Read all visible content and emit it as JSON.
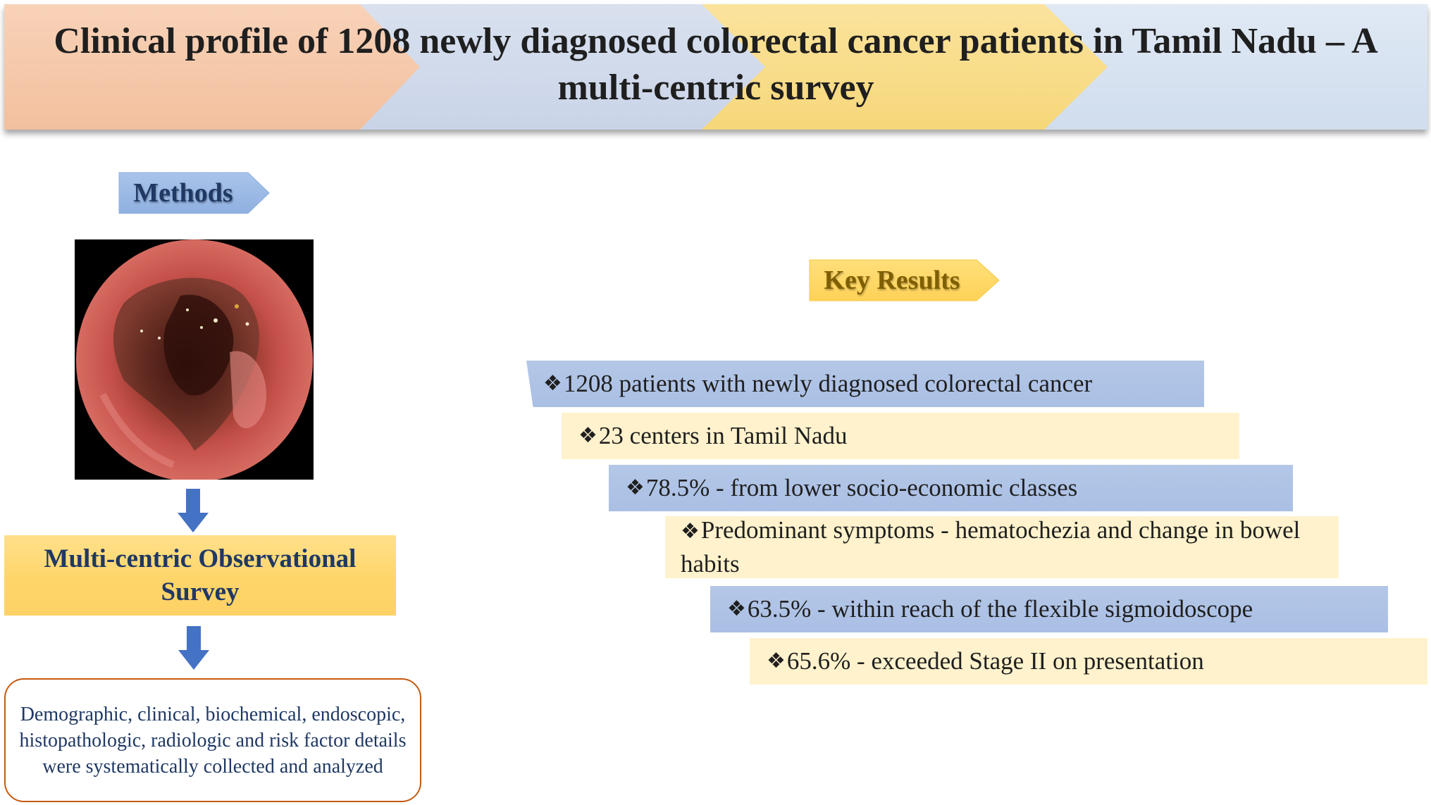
{
  "header": {
    "title": "Clinical profile of 1208 newly diagnosed colorectal cancer patients in Tamil Nadu – A multi-centric survey",
    "colors": [
      "#f4c7a8",
      "#cfd8ea",
      "#f9df8e",
      "#d6e2f0"
    ]
  },
  "methods": {
    "tag_label": "Methods",
    "image_icon": "colonoscopy-image",
    "survey_label": "Multi-centric Observational Survey",
    "details": "Demographic, clinical, biochemical, endoscopic, histopathologic, radiologic and risk factor details were systematically collected and analyzed"
  },
  "results": {
    "tag_label": "Key Results",
    "bullet": "❖",
    "items": [
      {
        "text": "1208 patients with newly diagnosed colorectal cancer",
        "color": "#b4c7e7"
      },
      {
        "text": "23 centers in Tamil Nadu",
        "color": "#fff2cc"
      },
      {
        "text": "78.5%  - from lower socio-economic classes",
        "color": "#b4c7e7"
      },
      {
        "text": "Predominant symptoms  - hematochezia and change in bowel habits",
        "color": "#fff2cc"
      },
      {
        "text": "63.5%  - within reach of the flexible sigmoidoscope",
        "color": "#b4c7e7"
      },
      {
        "text": "65.6%  - exceeded Stage II on presentation",
        "color": "#fff2cc"
      }
    ]
  }
}
